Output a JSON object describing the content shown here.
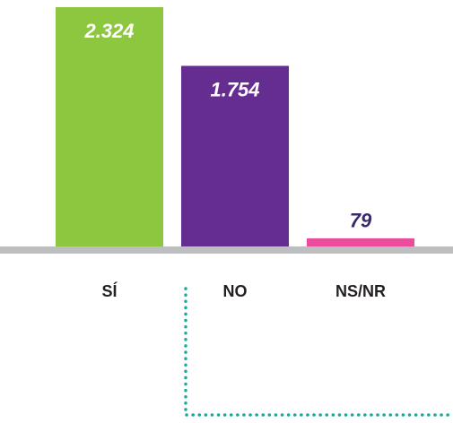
{
  "chart_data": {
    "type": "bar",
    "categories": [
      "SÍ",
      "NO",
      "NS/NR"
    ],
    "values": [
      2324,
      1754,
      79
    ],
    "value_labels": [
      "2.324",
      "1.754",
      "79"
    ],
    "colors": [
      "#8dc63f",
      "#662d91",
      "#ec4c9c"
    ]
  }
}
